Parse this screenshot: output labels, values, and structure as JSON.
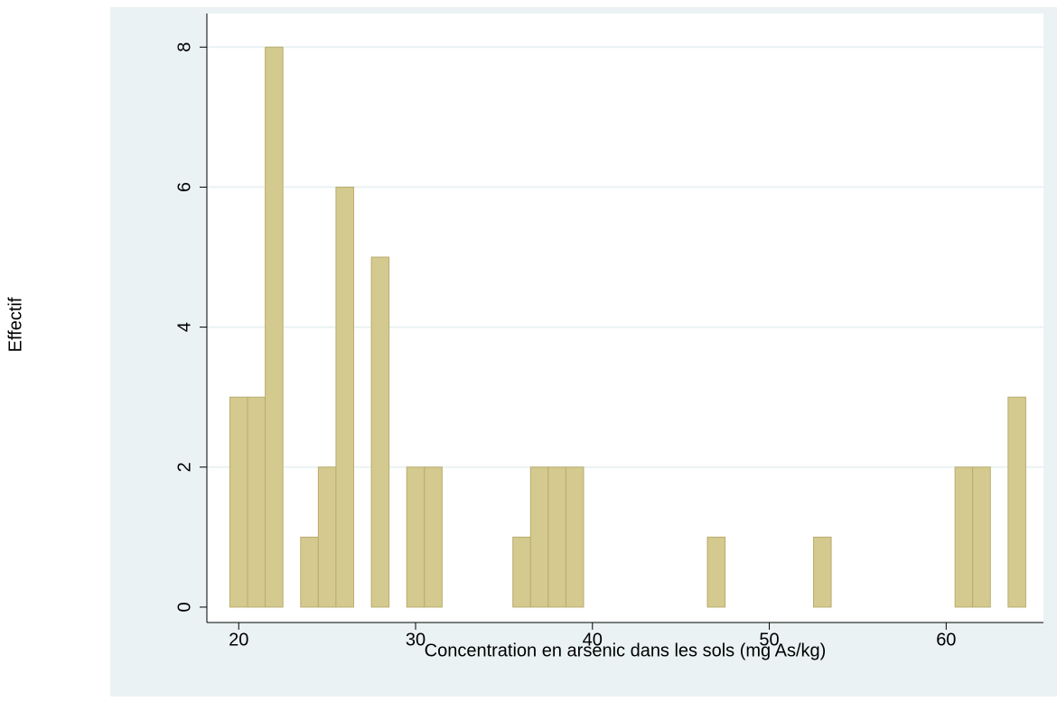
{
  "chart_data": {
    "type": "histogram",
    "xlabel": "Concentration en arsenic dans les sols (mg As/kg)",
    "ylabel": "Effectif",
    "bins": [
      19.5,
      20.5,
      21.5,
      22.5,
      23.5,
      24.5,
      25.5,
      26.5,
      27.5,
      28.5,
      29.5,
      30.5,
      31.5,
      32.5,
      33.5,
      34.5,
      35.5,
      36.5,
      37.5,
      38.5,
      39.5,
      40.5,
      41.5,
      42.5,
      43.5,
      44.5,
      45.5,
      46.5,
      47.5,
      48.5,
      49.5,
      50.5,
      51.5,
      52.5,
      53.5,
      54.5,
      55.5,
      56.5,
      57.5,
      58.5,
      59.5,
      60.5,
      61.5,
      62.5,
      63.5,
      64.5
    ],
    "values": [
      3,
      3,
      8,
      0,
      1,
      2,
      6,
      0,
      5,
      0,
      2,
      2,
      0,
      0,
      0,
      0,
      1,
      2,
      2,
      2,
      0,
      0,
      0,
      0,
      0,
      0,
      0,
      1,
      0,
      0,
      0,
      0,
      0,
      1,
      0,
      0,
      0,
      0,
      0,
      0,
      0,
      2,
      2,
      0,
      3
    ],
    "color": "#d4c98e",
    "xlim": [
      18.2,
      65.5
    ],
    "ylim": [
      -0.22,
      8.48
    ],
    "xticks": [
      20,
      30,
      40,
      50,
      60
    ],
    "yticks": [
      0,
      2,
      4,
      6,
      8
    ],
    "grid": true
  }
}
